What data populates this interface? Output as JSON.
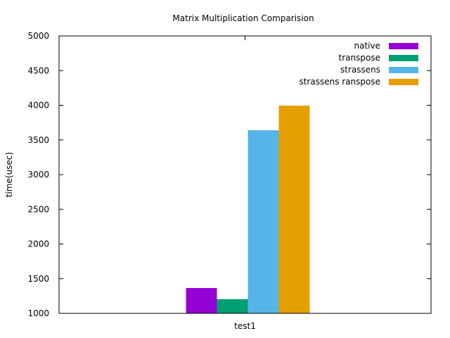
{
  "chart_data": {
    "type": "bar",
    "title": "Matrix Multiplication Comparision",
    "xlabel": "",
    "ylabel": "time(usec)",
    "categories": [
      "test1"
    ],
    "ylim": [
      1000,
      5000
    ],
    "yticks": [
      1000,
      1500,
      2000,
      2500,
      3000,
      3500,
      4000,
      4500,
      5000
    ],
    "grid": false,
    "legend_position": "top-right",
    "series": [
      {
        "name": "native",
        "color": "#9400d3",
        "values": [
          1365
        ]
      },
      {
        "name": "transpose",
        "color": "#009e73",
        "values": [
          1205
        ]
      },
      {
        "name": "strassens",
        "color": "#56b4e9",
        "values": [
          3640
        ]
      },
      {
        "name": "strassens  ranspose",
        "color": "#e69f00",
        "values": [
          3995
        ]
      }
    ]
  }
}
